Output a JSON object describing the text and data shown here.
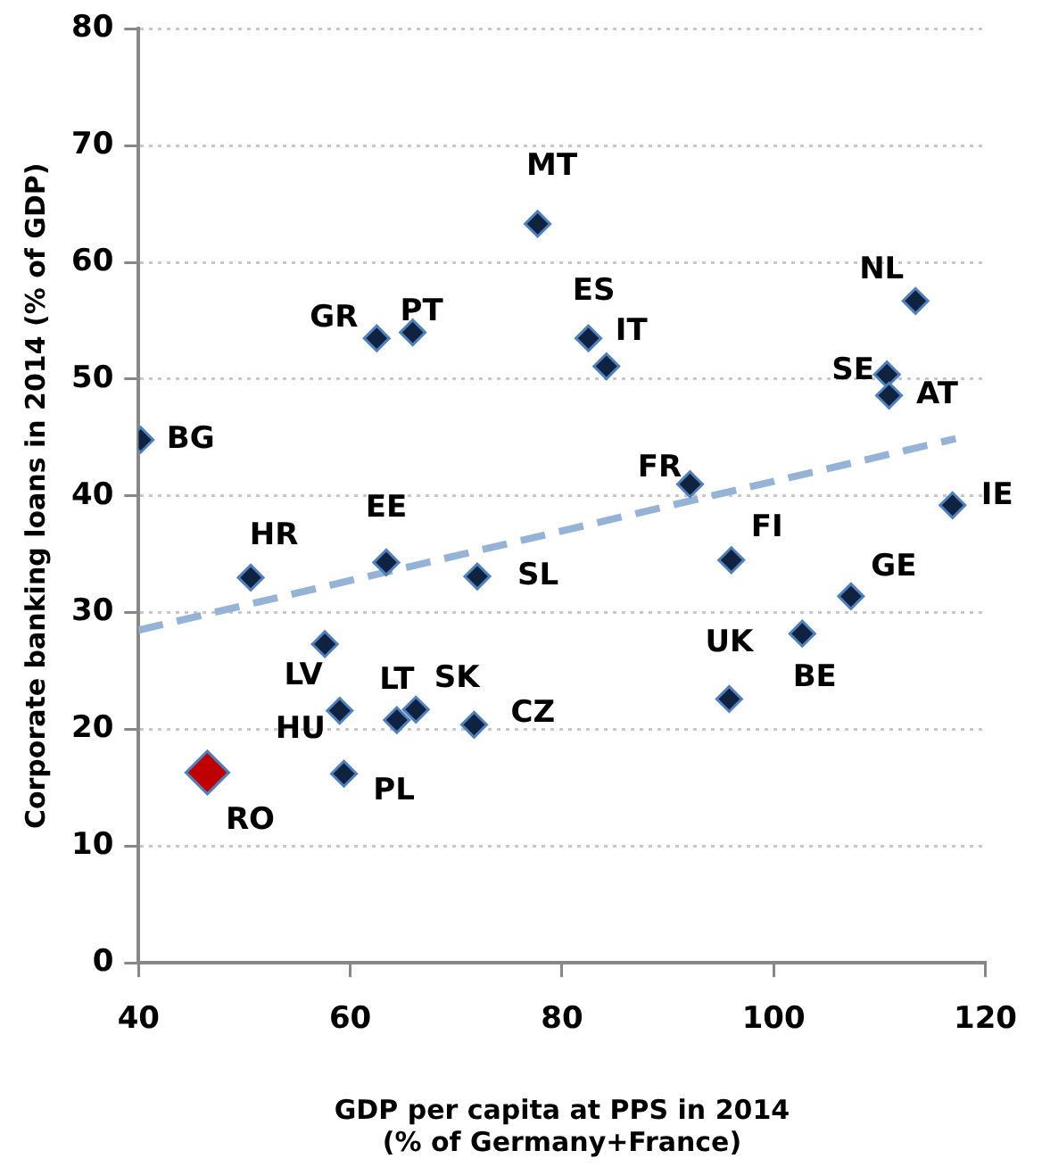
{
  "chart_data": {
    "type": "scatter",
    "xlabel": "GDP per capita at PPS in 2014\n(% of Germany+France)",
    "ylabel": "Corporate banking loans in 2014 (% of GDP)",
    "xlim": [
      40,
      120
    ],
    "xticks": [
      40,
      60,
      80,
      100,
      120
    ],
    "ylim": [
      0,
      80
    ],
    "yticks": [
      0,
      10,
      20,
      30,
      40,
      50,
      60,
      70,
      80
    ],
    "grid": "y",
    "legend": false,
    "marker": "diamond",
    "series": [
      {
        "color": "#0f2341",
        "x": [
          62.5,
          65.9,
          40.2,
          50.6,
          63.4,
          72.0,
          57.6,
          59.0,
          64.4,
          66.2,
          71.7,
          59.4,
          77.7,
          82.5,
          84.2,
          113.4,
          110.7,
          110.9,
          92.1,
          116.9,
          96.0,
          107.3,
          102.7,
          95.8
        ],
        "values": [
          53.5,
          54.0,
          44.8,
          33.0,
          34.3,
          33.1,
          27.3,
          21.6,
          20.8,
          21.7,
          20.4,
          16.2,
          63.3,
          53.5,
          51.1,
          56.7,
          50.4,
          48.6,
          41.0,
          39.2,
          34.5,
          31.4,
          28.2,
          22.6
        ]
      },
      {
        "color": "#c00000",
        "x": [
          46.5
        ],
        "values": [
          16.3
        ]
      },
      {
        "type": "line",
        "color": "#95b3d7",
        "line_style": "dashed",
        "marker": "none",
        "x": [
          40,
          117.2
        ],
        "values": [
          28.5,
          44.9
        ]
      }
    ],
    "annotations": [
      {
        "text": "GR",
        "x": 62.5,
        "y": 53.5
      },
      {
        "text": "PT",
        "x": 65.9,
        "y": 54.0
      },
      {
        "text": "BG",
        "x": 40.2,
        "y": 44.8
      },
      {
        "text": "HR",
        "x": 50.6,
        "y": 33.0
      },
      {
        "text": "EE",
        "x": 63.4,
        "y": 34.3
      },
      {
        "text": "SL",
        "x": 72.0,
        "y": 33.1
      },
      {
        "text": "LV",
        "x": 57.6,
        "y": 27.3
      },
      {
        "text": "HU",
        "x": 59.0,
        "y": 21.6
      },
      {
        "text": "LT",
        "x": 64.4,
        "y": 20.8
      },
      {
        "text": "SK",
        "x": 66.2,
        "y": 21.7
      },
      {
        "text": "CZ",
        "x": 71.7,
        "y": 20.4
      },
      {
        "text": "PL",
        "x": 59.4,
        "y": 16.2
      },
      {
        "text": "MT",
        "x": 77.7,
        "y": 63.3
      },
      {
        "text": "ES",
        "x": 82.5,
        "y": 53.5
      },
      {
        "text": "IT",
        "x": 84.2,
        "y": 51.1
      },
      {
        "text": "NL",
        "x": 113.4,
        "y": 56.7
      },
      {
        "text": "SE",
        "x": 110.7,
        "y": 50.4
      },
      {
        "text": "AT",
        "x": 110.9,
        "y": 48.6
      },
      {
        "text": "FR",
        "x": 92.1,
        "y": 41.0
      },
      {
        "text": "IE",
        "x": 116.9,
        "y": 39.2
      },
      {
        "text": "FI",
        "x": 96.0,
        "y": 34.5
      },
      {
        "text": "GE",
        "x": 107.3,
        "y": 31.4
      },
      {
        "text": "BE",
        "x": 102.7,
        "y": 28.2
      },
      {
        "text": "UK",
        "x": 95.8,
        "y": 22.6
      },
      {
        "text": "RO",
        "x": 46.5,
        "y": 16.3
      }
    ]
  }
}
